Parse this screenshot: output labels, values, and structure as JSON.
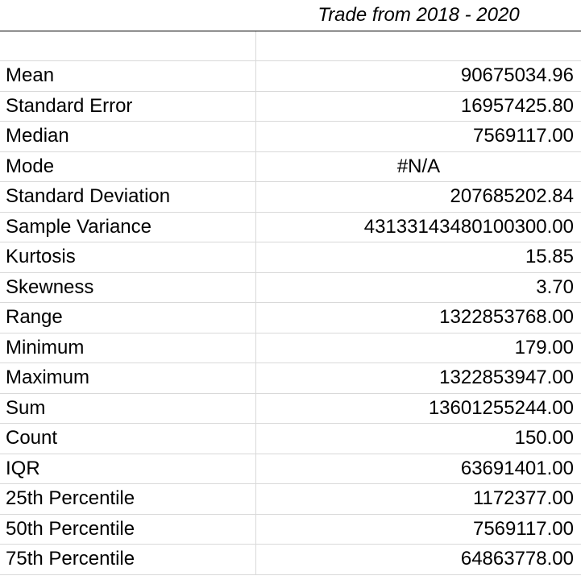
{
  "table": {
    "header": "Trade from 2018 - 2020",
    "blank_row": "",
    "rows": [
      {
        "label": "Mean",
        "value": "90675034.96",
        "align": "right"
      },
      {
        "label": "Standard Error",
        "value": "16957425.80",
        "align": "right"
      },
      {
        "label": "Median",
        "value": "7569117.00",
        "align": "right"
      },
      {
        "label": "Mode",
        "value": "#N/A",
        "align": "center"
      },
      {
        "label": "Standard Deviation",
        "value": "207685202.84",
        "align": "right"
      },
      {
        "label": "Sample Variance",
        "value": "43133143480100300.00",
        "align": "right"
      },
      {
        "label": "Kurtosis",
        "value": "15.85",
        "align": "right"
      },
      {
        "label": "Skewness",
        "value": "3.70",
        "align": "right"
      },
      {
        "label": "Range",
        "value": "1322853768.00",
        "align": "right"
      },
      {
        "label": "Minimum",
        "value": "179.00",
        "align": "right"
      },
      {
        "label": "Maximum",
        "value": "1322853947.00",
        "align": "right"
      },
      {
        "label": "Sum",
        "value": "13601255244.00",
        "align": "right"
      },
      {
        "label": "Count",
        "value": "150.00",
        "align": "right"
      },
      {
        "label": "IQR",
        "value": "63691401.00",
        "align": "right"
      },
      {
        "label": "25th Percentile",
        "value": "1172377.00",
        "align": "right"
      },
      {
        "label": "50th Percentile",
        "value": "7569117.00",
        "align": "right"
      },
      {
        "label": "75th Percentile",
        "value": "64863778.00",
        "align": "right"
      }
    ]
  },
  "colors": {
    "gridline": "#d9d9d9",
    "header_border": "#000000",
    "text": "#000000",
    "background": "#ffffff"
  }
}
